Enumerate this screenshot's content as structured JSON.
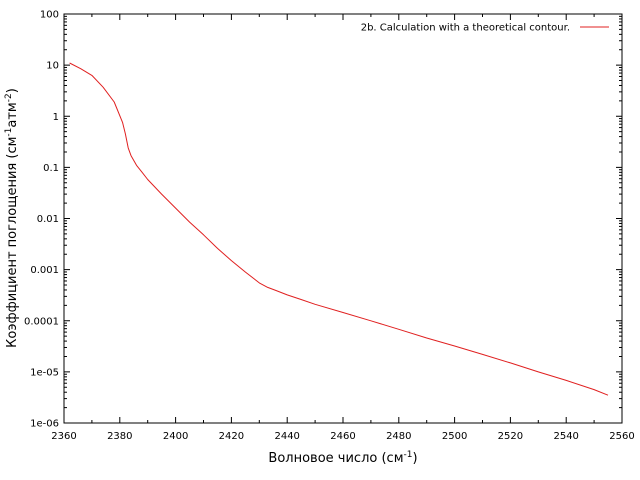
{
  "chart_data": {
    "type": "line",
    "xlabel": "Волновое число (см",
    "xlabel_sup": "-1",
    "xlabel_tail": ")",
    "ylabel_parts": [
      "Коэффициент поглощения (см",
      "-1",
      "атм",
      "-2",
      ")"
    ],
    "xlim": [
      2360,
      2560
    ],
    "ylim": [
      1e-06,
      100
    ],
    "y_scale": "log",
    "x_ticks": [
      2360,
      2380,
      2400,
      2420,
      2440,
      2460,
      2480,
      2500,
      2520,
      2540,
      2560
    ],
    "x_tick_labels": [
      "2360",
      "2380",
      "2400",
      "2420",
      "2440",
      "2460",
      "2480",
      "2500",
      "2520",
      "2540",
      "2560"
    ],
    "y_ticks": [
      1e-06,
      1e-05,
      0.0001,
      0.001,
      0.01,
      0.1,
      1,
      10,
      100
    ],
    "y_tick_labels": [
      "1e-06",
      "1e-05",
      "0.0001",
      "0.001",
      "0.01",
      "0.1",
      "1",
      "10",
      "100"
    ],
    "grid": false,
    "legend_position": "top-right",
    "series": [
      {
        "name": "2b. Calculation with a theoretical contour.",
        "color": "#e02020",
        "x": [
          2362,
          2366,
          2370,
          2374,
          2378,
          2381,
          2382,
          2383,
          2384,
          2386,
          2388,
          2390,
          2395,
          2400,
          2405,
          2410,
          2415,
          2420,
          2425,
          2430,
          2433,
          2436,
          2440,
          2445,
          2450,
          2460,
          2470,
          2480,
          2490,
          2500,
          2510,
          2520,
          2530,
          2540,
          2550,
          2555
        ],
        "y": [
          11,
          8.5,
          6.3,
          3.7,
          1.9,
          0.75,
          0.45,
          0.24,
          0.17,
          0.11,
          0.08,
          0.058,
          0.03,
          0.016,
          0.0085,
          0.0048,
          0.0026,
          0.0015,
          0.0009,
          0.00055,
          0.00045,
          0.00039,
          0.00032,
          0.00026,
          0.00021,
          0.000145,
          0.0001,
          6.8e-05,
          4.6e-05,
          3.2e-05,
          2.2e-05,
          1.5e-05,
          1e-05,
          6.8e-06,
          4.5e-06,
          3.5e-06
        ]
      }
    ]
  }
}
